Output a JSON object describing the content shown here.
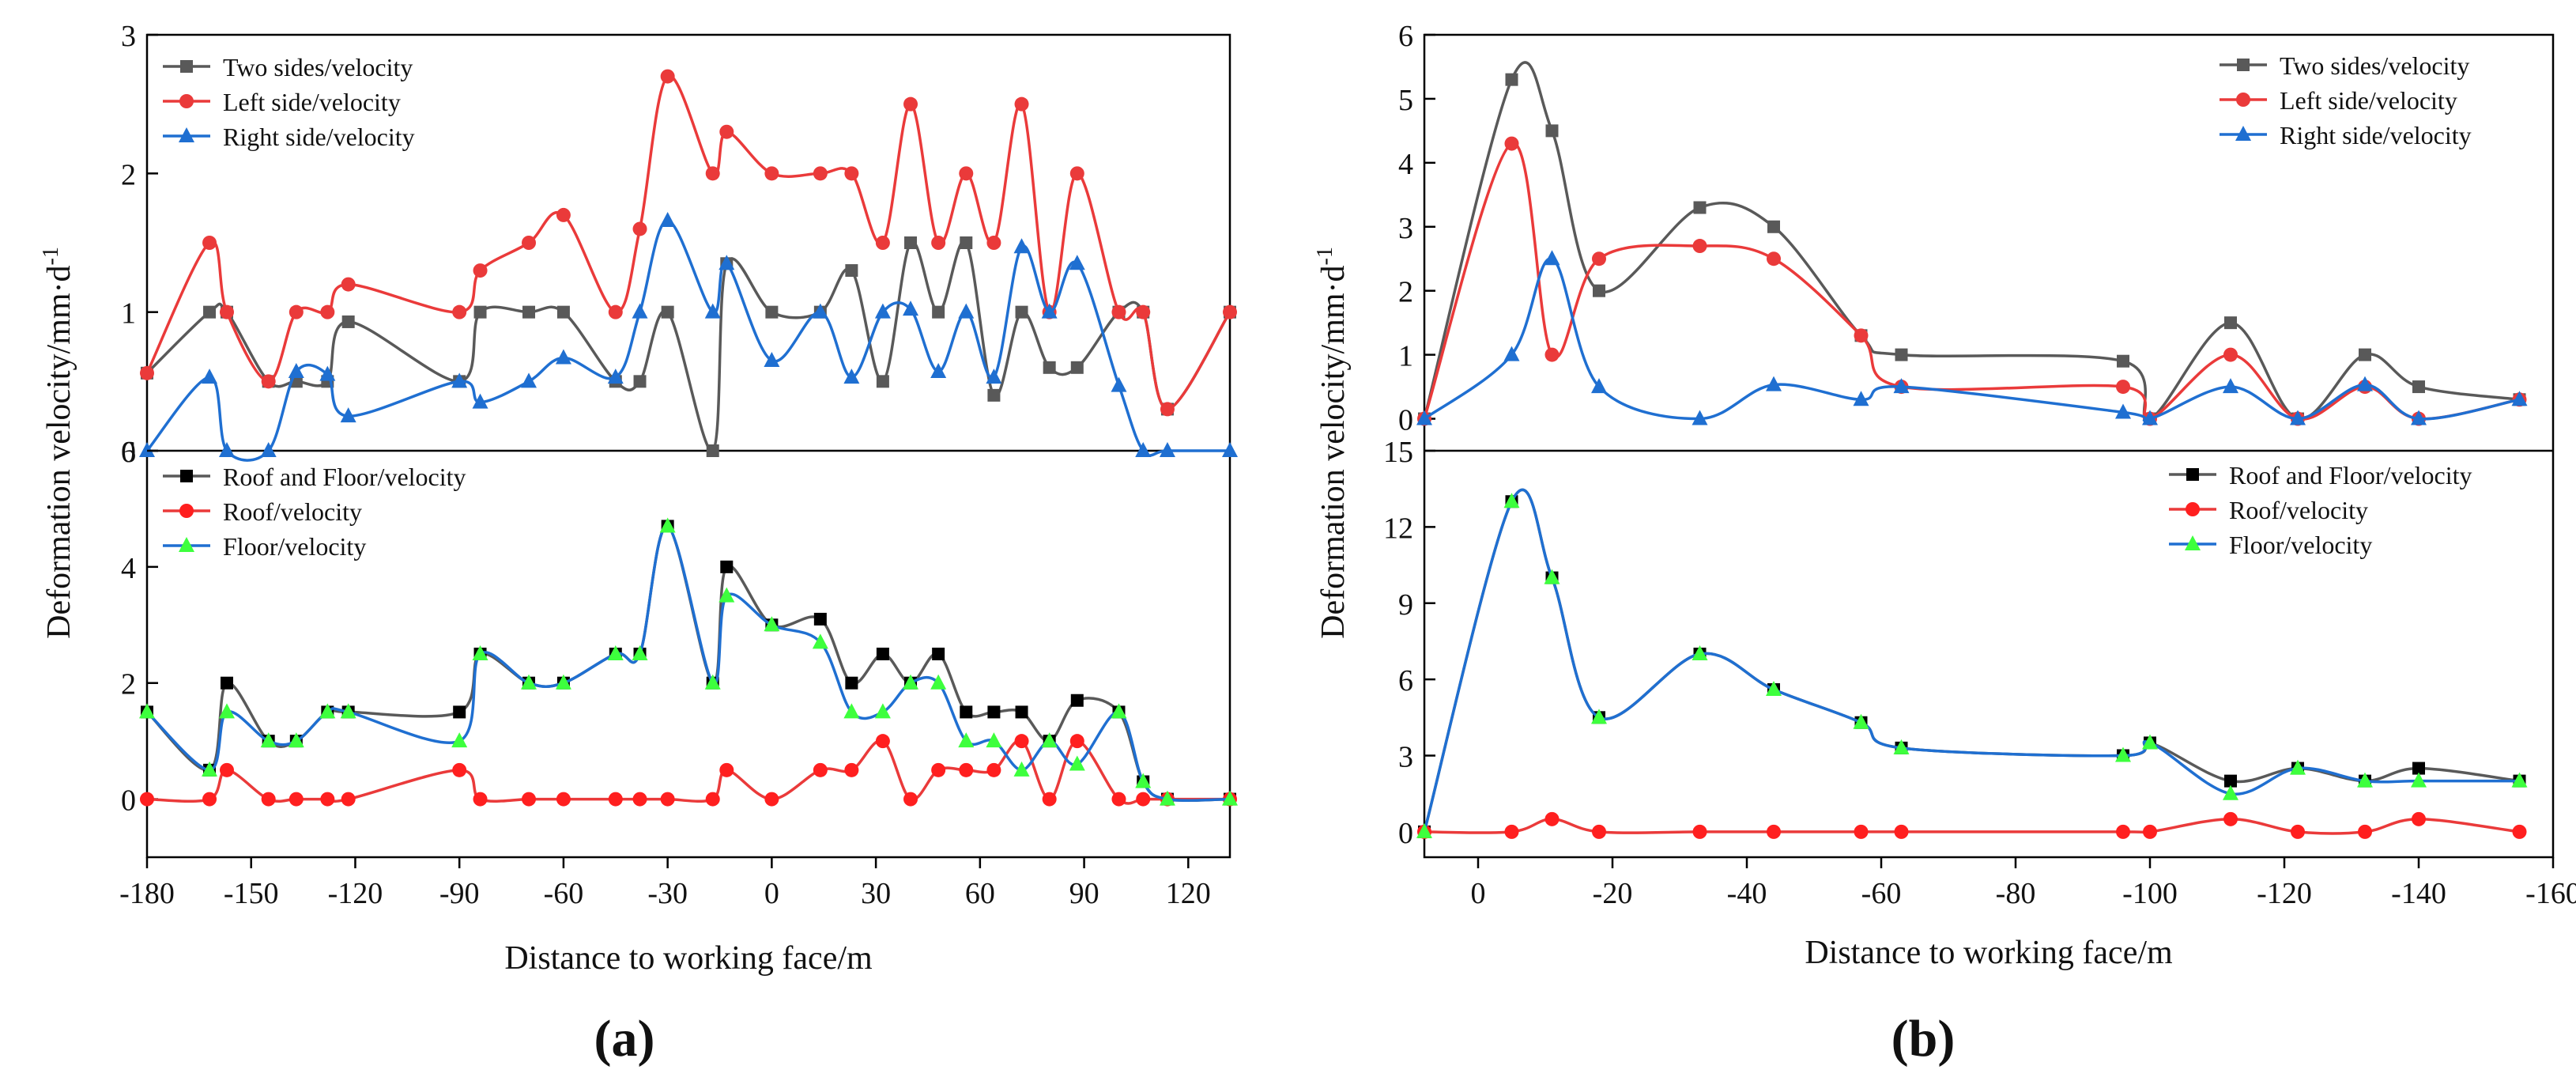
{
  "figure": {
    "ylabel": "Deformation velocity/mm·d",
    "ylabel_sup": "-1",
    "xlabel": "Distance to working face/m",
    "panel_a_label": "(a)",
    "panel_b_label": "(b)"
  },
  "chart_data": [
    {
      "id": "a-top",
      "type": "line",
      "xlabel": "",
      "ylabel": "",
      "xlim": [
        -180,
        132
      ],
      "x_reversed": false,
      "ylim": [
        0,
        3
      ],
      "yticks": [
        0,
        1,
        2,
        3
      ],
      "ytick_labels": [
        "0",
        "1",
        "2",
        "3"
      ],
      "grid": false,
      "legend_position": "top-left",
      "series": [
        {
          "name": "Two sides/velocity",
          "color": "#595959",
          "marker": "square",
          "x": [
            -180,
            -162,
            -157,
            -145,
            -137,
            -128,
            -122,
            -90,
            -84,
            -70,
            -60,
            -45,
            -38,
            -30,
            -17,
            -13,
            0,
            14,
            23,
            32,
            40,
            48,
            56,
            64,
            72,
            80,
            88,
            100,
            107,
            114,
            132
          ],
          "y": [
            0.56,
            1,
            1,
            0.5,
            0.5,
            0.5,
            0.93,
            0.5,
            1,
            1,
            1,
            0.5,
            0.5,
            1,
            0,
            1.35,
            1,
            1,
            1.3,
            0.5,
            1.5,
            1,
            1.5,
            0.4,
            1,
            0.6,
            0.6,
            1,
            1,
            0.3,
            1
          ]
        },
        {
          "name": "Left side/velocity",
          "color": "#ea3a3a",
          "marker": "circle",
          "x": [
            -180,
            -162,
            -157,
            -145,
            -137,
            -128,
            -122,
            -90,
            -84,
            -70,
            -60,
            -45,
            -38,
            -30,
            -17,
            -13,
            0,
            14,
            23,
            32,
            40,
            48,
            56,
            64,
            72,
            80,
            88,
            100,
            107,
            114,
            132
          ],
          "y": [
            0.56,
            1.5,
            1,
            0.5,
            1,
            1,
            1.2,
            1,
            1.3,
            1.5,
            1.7,
            1,
            1.6,
            2.7,
            2,
            2.3,
            2,
            2,
            2,
            1.5,
            2.5,
            1.5,
            2,
            1.5,
            2.5,
            1,
            2,
            1,
            1,
            0.3,
            1
          ]
        },
        {
          "name": "Right side/velocity",
          "color": "#1f6fd1",
          "marker": "triangle",
          "x": [
            -180,
            -162,
            -157,
            -145,
            -137,
            -128,
            -122,
            -90,
            -84,
            -70,
            -60,
            -45,
            -38,
            -30,
            -17,
            -13,
            0,
            14,
            23,
            32,
            40,
            48,
            56,
            64,
            72,
            80,
            88,
            100,
            107,
            114,
            132
          ],
          "y": [
            0,
            0.53,
            0,
            0,
            0.57,
            0.55,
            0.25,
            0.5,
            0.35,
            0.5,
            0.67,
            0.53,
            1,
            1.66,
            1,
            1.35,
            0.65,
            1,
            0.53,
            1,
            1.02,
            0.57,
            1,
            0.53,
            1.47,
            1,
            1.35,
            0.47,
            0,
            0,
            0
          ]
        }
      ]
    },
    {
      "id": "a-bottom",
      "type": "line",
      "xlabel": "Distance to working face/m",
      "ylabel": "",
      "xlim": [
        -180,
        132
      ],
      "x_reversed": false,
      "ylim": [
        -1,
        6
      ],
      "yticks": [
        0,
        2,
        4,
        6
      ],
      "ytick_labels": [
        "0",
        "2",
        "4",
        "6"
      ],
      "xticks": [
        -180,
        -150,
        -120,
        -90,
        -60,
        -30,
        0,
        30,
        60,
        90,
        120
      ],
      "xtick_labels": [
        "-180",
        "-150",
        "-120",
        "-90",
        "-60",
        "-30",
        "0",
        "30",
        "60",
        "90",
        "120"
      ],
      "grid": false,
      "legend_position": "top-left",
      "series": [
        {
          "name": "Roof and Floor/velocity",
          "color": "#000000",
          "line_color": "#595959",
          "marker": "square",
          "x": [
            -180,
            -162,
            -157,
            -145,
            -137,
            -128,
            -122,
            -90,
            -84,
            -70,
            -60,
            -45,
            -38,
            -30,
            -17,
            -13,
            0,
            14,
            23,
            32,
            40,
            48,
            56,
            64,
            72,
            80,
            88,
            100,
            107,
            114,
            132
          ],
          "y": [
            1.5,
            0.5,
            2,
            1,
            1,
            1.5,
            1.5,
            1.5,
            2.5,
            2,
            2,
            2.5,
            2.5,
            4.7,
            2,
            4,
            3,
            3.1,
            2,
            2.5,
            2,
            2.5,
            1.5,
            1.5,
            1.5,
            1,
            1.7,
            1.5,
            0.3,
            0,
            0
          ]
        },
        {
          "name": "Roof/velocity",
          "color": "#ff1f1f",
          "line_color": "#ea3a3a",
          "marker": "circle",
          "x": [
            -180,
            -162,
            -157,
            -145,
            -137,
            -128,
            -122,
            -90,
            -84,
            -70,
            -60,
            -45,
            -38,
            -30,
            -17,
            -13,
            0,
            14,
            23,
            32,
            40,
            48,
            56,
            64,
            72,
            80,
            88,
            100,
            107,
            114,
            132
          ],
          "y": [
            0,
            0,
            0.5,
            0,
            0,
            0,
            0,
            0.5,
            0,
            0,
            0,
            0,
            0,
            0,
            0,
            0.5,
            0,
            0.5,
            0.5,
            1,
            0,
            0.5,
            0.5,
            0.5,
            1,
            0,
            1,
            0,
            0,
            0,
            0
          ]
        },
        {
          "name": "Floor/velocity",
          "color": "#3dff3d",
          "line_color": "#1f6fd1",
          "marker": "triangle",
          "x": [
            -180,
            -162,
            -157,
            -145,
            -137,
            -128,
            -122,
            -90,
            -84,
            -70,
            -60,
            -45,
            -38,
            -30,
            -17,
            -13,
            0,
            14,
            23,
            32,
            40,
            48,
            56,
            64,
            72,
            80,
            88,
            100,
            107,
            114,
            132
          ],
          "y": [
            1.5,
            0.5,
            1.5,
            1,
            1,
            1.5,
            1.5,
            1,
            2.5,
            2,
            2,
            2.5,
            2.5,
            4.7,
            2,
            3.5,
            3,
            2.7,
            1.5,
            1.5,
            2,
            2,
            1,
            1,
            0.5,
            1,
            0.6,
            1.5,
            0.3,
            0,
            0
          ]
        }
      ]
    },
    {
      "id": "b-top",
      "type": "line",
      "xlabel": "",
      "ylabel": "",
      "xlim": [
        8,
        -160
      ],
      "x_reversed": true,
      "ylim": [
        -0.5,
        6
      ],
      "yticks": [
        0,
        1,
        2,
        3,
        4,
        5,
        6
      ],
      "ytick_labels": [
        "0",
        "1",
        "2",
        "3",
        "4",
        "5",
        "6"
      ],
      "grid": false,
      "legend_position": "top-right",
      "series": [
        {
          "name": "Two sides/velocity",
          "color": "#595959",
          "marker": "square",
          "x": [
            8,
            -5,
            -11,
            -18,
            -33,
            -44,
            -57,
            -63,
            -96,
            -100,
            -112,
            -122,
            -132,
            -140,
            -155
          ],
          "y": [
            0,
            5.3,
            4.5,
            2,
            3.3,
            3,
            1.3,
            1,
            0.9,
            0,
            1.5,
            0,
            1,
            0.5,
            0.3
          ]
        },
        {
          "name": "Left side/velocity",
          "color": "#ea3a3a",
          "marker": "circle",
          "x": [
            8,
            -5,
            -11,
            -18,
            -33,
            -44,
            -57,
            -63,
            -96,
            -100,
            -112,
            -122,
            -132,
            -140,
            -155
          ],
          "y": [
            0,
            4.3,
            1,
            2.5,
            2.7,
            2.5,
            1.3,
            0.5,
            0.5,
            0,
            1,
            0,
            0.5,
            0,
            0.3
          ]
        },
        {
          "name": "Right side/velocity",
          "color": "#1f6fd1",
          "marker": "triangle",
          "x": [
            8,
            -5,
            -11,
            -18,
            -33,
            -44,
            -57,
            -63,
            -96,
            -100,
            -112,
            -122,
            -132,
            -140,
            -155
          ],
          "y": [
            0,
            1,
            2.5,
            0.5,
            0,
            0.53,
            0.3,
            0.5,
            0.1,
            0,
            0.5,
            0,
            0.53,
            0,
            0.3
          ]
        }
      ]
    },
    {
      "id": "b-bottom",
      "type": "line",
      "xlabel": "Distance to working face/m",
      "ylabel": "",
      "xlim": [
        8,
        -160
      ],
      "x_reversed": true,
      "ylim": [
        -1,
        15
      ],
      "yticks": [
        0,
        3,
        6,
        9,
        12,
        15
      ],
      "ytick_labels": [
        "0",
        "3",
        "6",
        "9",
        "12",
        "15"
      ],
      "xticks": [
        0,
        -20,
        -40,
        -60,
        -80,
        -100,
        -120,
        -140,
        -160
      ],
      "xtick_labels": [
        "0",
        "-20",
        "-40",
        "-60",
        "-80",
        "-100",
        "-120",
        "-140",
        "-160"
      ],
      "grid": false,
      "legend_position": "top-right",
      "series": [
        {
          "name": "Roof and Floor/velocity",
          "color": "#000000",
          "line_color": "#595959",
          "marker": "square",
          "x": [
            8,
            -5,
            -11,
            -18,
            -33,
            -44,
            -57,
            -63,
            -96,
            -100,
            -112,
            -122,
            -132,
            -140,
            -155
          ],
          "y": [
            0,
            13,
            10,
            4.5,
            7,
            5.6,
            4.3,
            3.3,
            3,
            3.5,
            2,
            2.5,
            2,
            2.5,
            2
          ]
        },
        {
          "name": "Roof/velocity",
          "color": "#ff1f1f",
          "line_color": "#ea3a3a",
          "marker": "circle",
          "x": [
            8,
            -5,
            -11,
            -18,
            -33,
            -44,
            -57,
            -63,
            -96,
            -100,
            -112,
            -122,
            -132,
            -140,
            -155
          ],
          "y": [
            0,
            0,
            0.5,
            0,
            0,
            0,
            0,
            0,
            0,
            0,
            0.5,
            0,
            0,
            0.5,
            0
          ]
        },
        {
          "name": "Floor/velocity",
          "color": "#3dff3d",
          "line_color": "#1f6fd1",
          "marker": "triangle",
          "x": [
            8,
            -5,
            -11,
            -18,
            -33,
            -44,
            -57,
            -63,
            -96,
            -100,
            -112,
            -122,
            -132,
            -140,
            -155
          ],
          "y": [
            0,
            13,
            10,
            4.5,
            7,
            5.6,
            4.3,
            3.3,
            3,
            3.5,
            1.5,
            2.5,
            2,
            2,
            2
          ]
        }
      ]
    }
  ]
}
